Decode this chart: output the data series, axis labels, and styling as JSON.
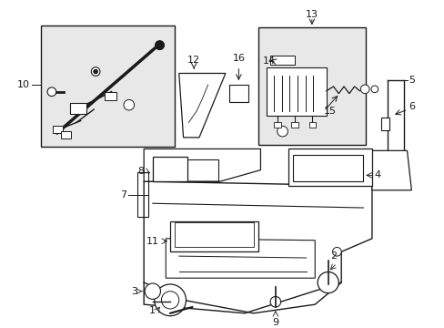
{
  "bg_color": "#ffffff",
  "lc": "#1a1a1a",
  "box_fill": "#e8e8e8",
  "figsize": [
    4.89,
    3.6
  ],
  "dpi": 100
}
